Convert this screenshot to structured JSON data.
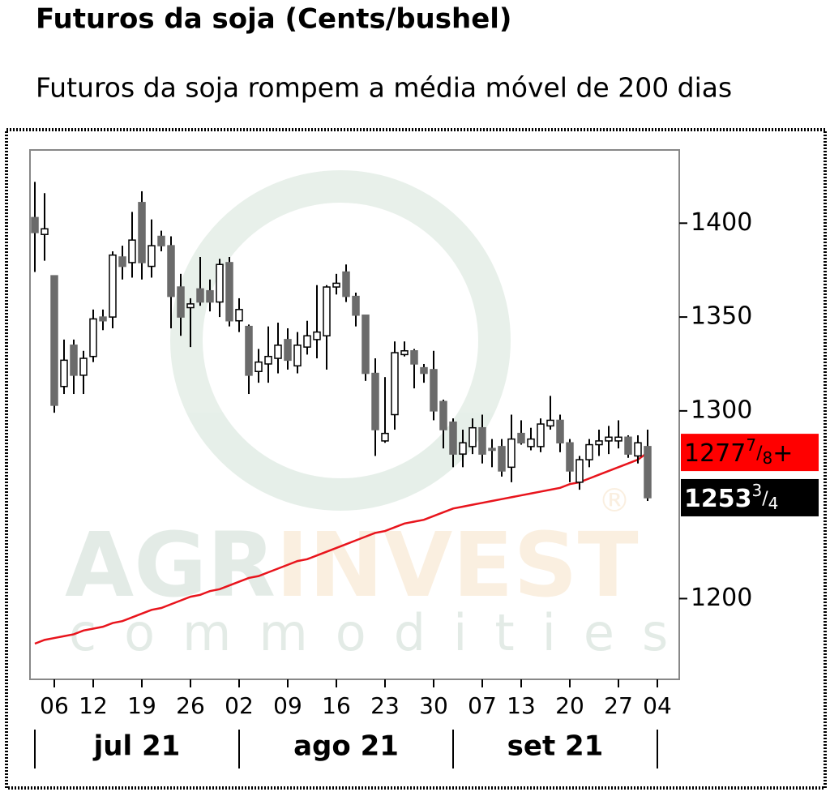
{
  "chart_data": {
    "type": "candlestick",
    "title": "Futuros da soja (Cents/bushel)",
    "subtitle": "Futuros da soja rompem a média móvel de 200 dias",
    "categories": [
      null,
      null,
      "06",
      null,
      null,
      null,
      "12",
      null,
      null,
      null,
      null,
      "19",
      null,
      null,
      null,
      null,
      "26",
      null,
      null,
      null,
      null,
      "02",
      null,
      null,
      null,
      null,
      "09",
      null,
      null,
      null,
      null,
      "16",
      null,
      null,
      null,
      null,
      "23",
      null,
      null,
      null,
      null,
      "30",
      null,
      null,
      null,
      null,
      "07",
      null,
      null,
      null,
      "13",
      null,
      null,
      null,
      null,
      "20",
      null,
      null,
      null,
      null,
      "27",
      null,
      null,
      null,
      "04"
    ],
    "open": [
      1403,
      1394,
      1372,
      1313,
      1335,
      1319,
      1329,
      1350,
      1350,
      1382,
      1379,
      1411,
      1377,
      1393,
      1388,
      1366,
      1355,
      1365,
      1364,
      1358,
      1379,
      1348,
      1345,
      1321,
      1325,
      1328,
      1338,
      1324,
      1334,
      1338,
      1340,
      1366,
      1374,
      1361,
      1351,
      1320,
      1284,
      1298,
      1330,
      1332,
      1323,
      1322,
      1305,
      1294,
      1277,
      1281,
      1291,
      1280,
      1281,
      1270,
      1288,
      1281,
      1281,
      1292,
      1295,
      1283,
      1262,
      1274,
      1282,
      1284,
      1284,
      1286,
      1276,
      1281,
      null
    ],
    "high": [
      1422,
      1416,
      1372,
      1338,
      1338,
      1332,
      1354,
      1354,
      1385,
      1388,
      1406,
      1417,
      1402,
      1396,
      1393,
      1373,
      1360,
      1382,
      1370,
      1381,
      1382,
      1360,
      1346,
      1333,
      1345,
      1347,
      1344,
      1342,
      1348,
      1367,
      1367,
      1373,
      1378,
      1363,
      1351,
      1328,
      1318,
      1337,
      1337,
      1333,
      1325,
      1332,
      1306,
      1296,
      1290,
      1296,
      1298,
      1285,
      1285,
      1298,
      1295,
      1291,
      1296,
      1308,
      1298,
      1285,
      1276,
      1285,
      1290,
      1292,
      1295,
      1287,
      1287,
      1290,
      null
    ],
    "low": [
      1374,
      1380,
      1299,
      1309,
      1309,
      1309,
      1326,
      1343,
      1344,
      1370,
      1371,
      1370,
      1371,
      1385,
      1344,
      1340,
      1334,
      1356,
      1353,
      1350,
      1345,
      1342,
      1309,
      1315,
      1315,
      1320,
      1322,
      1320,
      1330,
      1328,
      1322,
      1362,
      1358,
      1345,
      1316,
      1276,
      1283,
      1290,
      1329,
      1312,
      1315,
      1295,
      1280,
      1270,
      1270,
      1277,
      1272,
      1270,
      1265,
      1262,
      1282,
      1279,
      1278,
      1290,
      1278,
      1262,
      1258,
      1270,
      1276,
      1277,
      1280,
      1275,
      1272,
      1252,
      null
    ],
    "close": [
      1395,
      1397,
      1303,
      1327,
      1319,
      1328,
      1349,
      1348,
      1383,
      1377,
      1391,
      1379,
      1388,
      1388,
      1361,
      1350,
      1357,
      1358,
      1358,
      1378,
      1348,
      1354,
      1319,
      1326,
      1329,
      1335,
      1327,
      1335,
      1340,
      1342,
      1366,
      1368,
      1361,
      1351,
      1320,
      1290,
      1288,
      1331,
      1332,
      1325,
      1320,
      1300,
      1290,
      1277,
      1283,
      1291,
      1277,
      1279,
      1268,
      1285,
      1283,
      1285,
      1293,
      1295,
      1283,
      1268,
      1274,
      1282,
      1284,
      1286,
      1286,
      1277,
      1283,
      1253.75,
      null
    ],
    "up_color": "#ffffff",
    "down_color": "#6b6b6b",
    "ma": {
      "color": "#e8141c",
      "values": [
        1176,
        1178,
        1179,
        1180,
        1181,
        1183,
        1184,
        1185,
        1187,
        1188,
        1190,
        1192,
        1194,
        1195,
        1197,
        1199,
        1201,
        1202,
        1204,
        1205,
        1207,
        1209,
        1211,
        1212,
        1214,
        1216,
        1218,
        1220,
        1221,
        1223,
        1225,
        1227,
        1229,
        1231,
        1233,
        1235,
        1236,
        1238,
        1240,
        1241,
        1242,
        1244,
        1246,
        1248,
        1249,
        1250,
        1251,
        1252,
        1253,
        1254,
        1255,
        1256,
        1257,
        1258,
        1259,
        1261,
        1262,
        1264,
        1266,
        1268,
        1270,
        1272,
        1274,
        1277.875,
        null
      ]
    },
    "price_labels": [
      {
        "value": 1277.875,
        "whole": "1277",
        "num": "7",
        "den": "8",
        "suffix": "+",
        "color": "#ff0000"
      },
      {
        "value": 1253.75,
        "whole": "1253",
        "num": "3",
        "den": "4",
        "color": "#000000"
      }
    ],
    "months": [
      "jul 21",
      "ago 21",
      "set 21"
    ],
    "ylim": [
      1157,
      1439
    ],
    "yticks": [
      1200,
      1300,
      1350,
      1400
    ],
    "watermark": {
      "first": "AGR",
      "second": "INVEST",
      "sub": "commodities",
      "mark": "®"
    }
  }
}
